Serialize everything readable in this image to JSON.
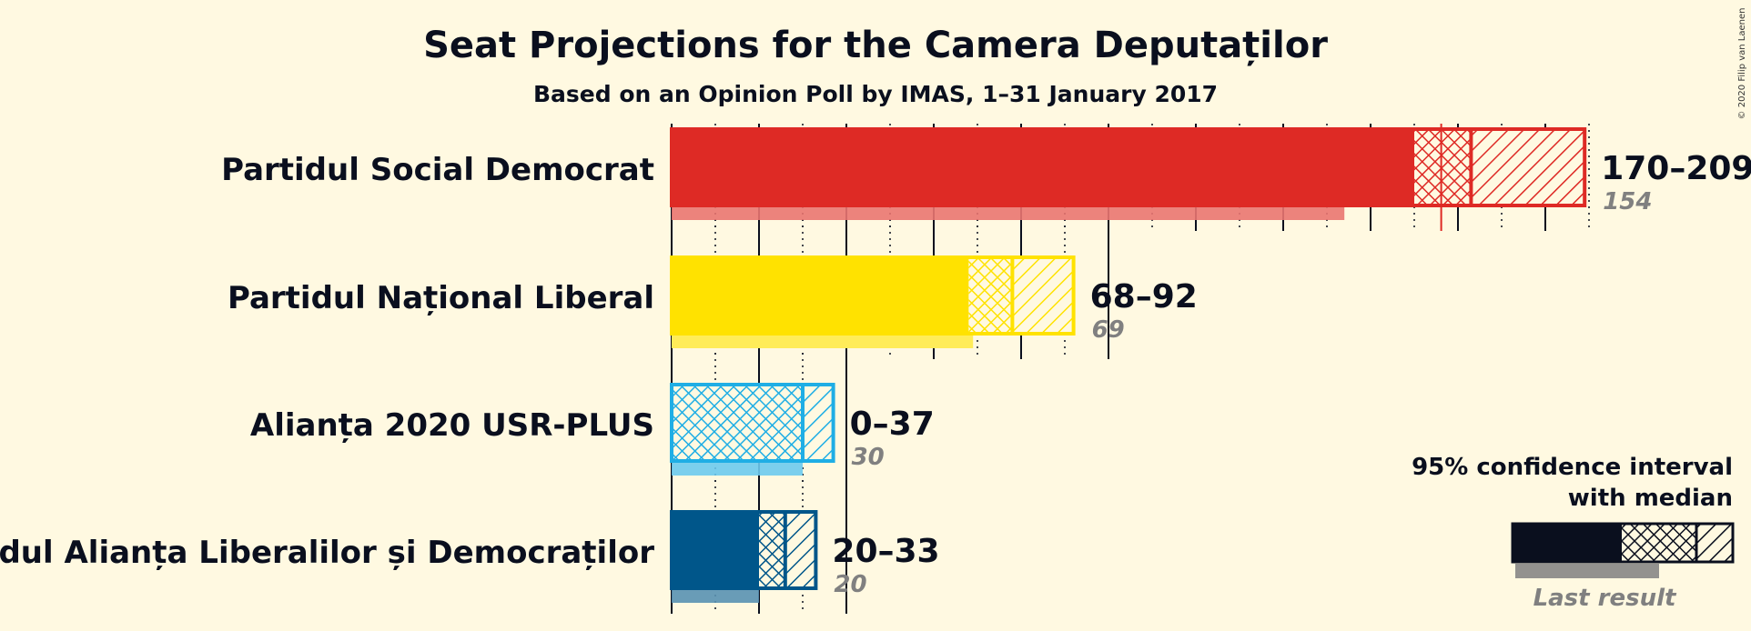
{
  "chart_data": {
    "type": "bar",
    "title": "Seat Projections for the Camera Deputaților",
    "subtitle": "Based on an Opinion Poll by IMAS, 1–31 January 2017",
    "xlim": [
      0,
      210
    ],
    "gridline_major_step": 20,
    "gridline_minor_step": 10,
    "series": [
      {
        "name": "Partidul Social Democrat",
        "color": "#de2a25",
        "ci_low": 170,
        "median": 177,
        "ci_high": 209,
        "hatch_split": 183,
        "last_result": 154,
        "range_label": "170–209",
        "last_label": "154"
      },
      {
        "name": "Partidul Național Liberal",
        "color": "#ffe200",
        "ci_low": 68,
        "median": 78,
        "ci_high": 92,
        "hatch_split": 78,
        "last_result": 69,
        "range_label": "68–92",
        "last_label": "69"
      },
      {
        "name": "Alianța 2020 USR-PLUS",
        "color": "#1faee5",
        "ci_low": 0,
        "median": 30,
        "ci_high": 37,
        "hatch_split": 30,
        "last_result": 30,
        "range_label": "0–37",
        "last_label": "30"
      },
      {
        "name": "Partidul Alianța Liberalilor și Democraților",
        "color": "#00568a",
        "ci_low": 20,
        "median": 26,
        "ci_high": 33,
        "hatch_split": 26,
        "last_result": 20,
        "range_label": "20–33",
        "last_label": "20"
      }
    ],
    "legend": {
      "title_line1": "95% confidence interval",
      "title_line2": "with median",
      "last_result": "Last result",
      "position": "bottom-right"
    }
  },
  "copyright": "© 2020 Filip van Laenen"
}
